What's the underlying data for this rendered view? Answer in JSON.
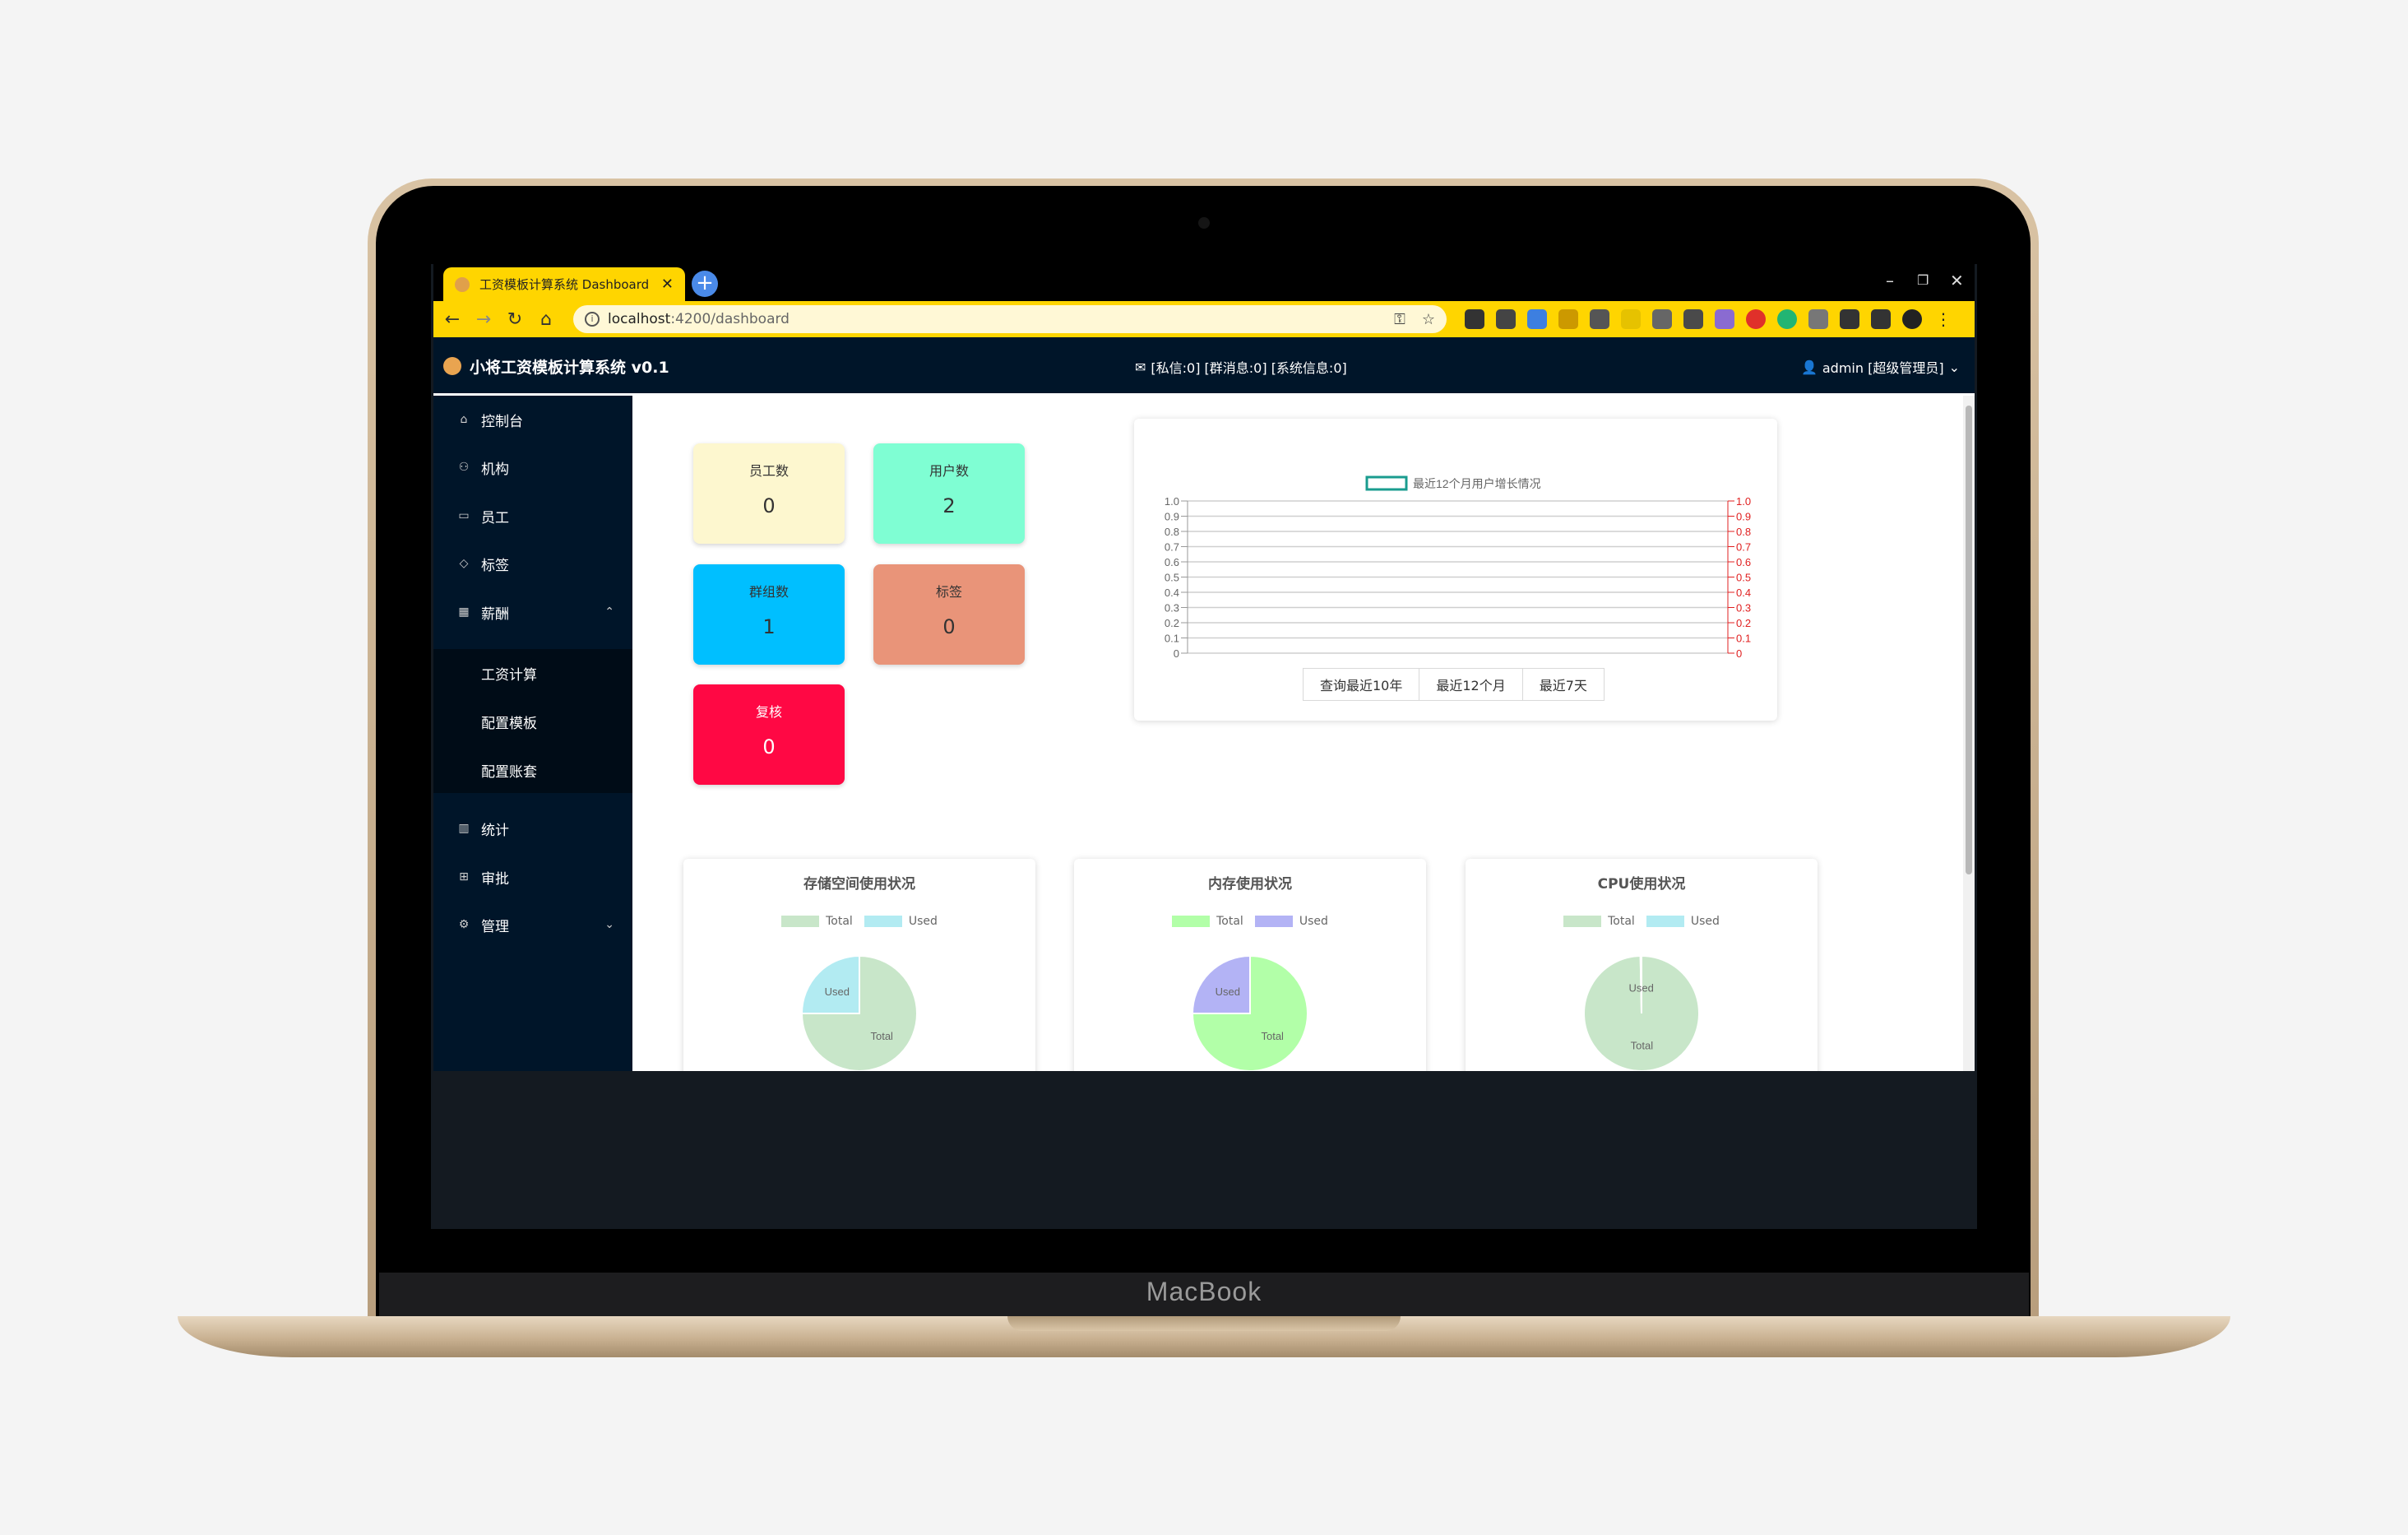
{
  "device": {
    "brand": "MacBook"
  },
  "browser": {
    "tab_title": "工资模板计算系统 Dashboard",
    "url_host": "localhost",
    "url_path": ":4200/dashboard"
  },
  "app": {
    "title": "小将工资模板计算系统 v0.1",
    "messages": "[私信:0] [群消息:0] [系统信息:0]",
    "user": "admin [超级管理员]"
  },
  "sidebar": {
    "items": [
      {
        "label": "控制台",
        "icon": "home-icon"
      },
      {
        "label": "机构",
        "icon": "team-icon"
      },
      {
        "label": "员工",
        "icon": "idcard-icon"
      },
      {
        "label": "标签",
        "icon": "tag-icon"
      },
      {
        "label": "薪酬",
        "icon": "salary-icon",
        "expanded": true
      },
      {
        "label": "统计",
        "icon": "bar-chart-icon"
      },
      {
        "label": "审批",
        "icon": "appstore-icon"
      },
      {
        "label": "管理",
        "icon": "setting-icon",
        "expanded": false
      }
    ],
    "salary_submenu": [
      "工资计算",
      "配置模板",
      "配置账套"
    ]
  },
  "stats": [
    {
      "label": "员工数",
      "value": "0",
      "bg": "#fdf7cf",
      "fg": "#333333"
    },
    {
      "label": "用户数",
      "value": "2",
      "bg": "#7ffed3",
      "fg": "#333333"
    },
    {
      "label": "群组数",
      "value": "1",
      "bg": "#00bfff",
      "fg": "#333333"
    },
    {
      "label": "标签",
      "value": "0",
      "bg": "#e99479",
      "fg": "#333333"
    },
    {
      "label": "复核",
      "value": "0",
      "bg": "#ff0844",
      "fg": "#ffffff"
    }
  ],
  "growth_chart": {
    "legend": "最近12个月用户增长情况",
    "range_buttons": [
      "查询最近10年",
      "最近12个月",
      "最近7天"
    ]
  },
  "chart_data": [
    {
      "type": "line",
      "series": [
        {
          "name": "最近12个月用户增长情况",
          "values": []
        }
      ],
      "ylim": [
        0,
        1.0
      ],
      "y_ticks": [
        "0",
        "0.1",
        "0.2",
        "0.3",
        "0.4",
        "0.5",
        "0.6",
        "0.7",
        "0.8",
        "0.9",
        "1.0"
      ],
      "y2_ticks": [
        "0",
        "0.1",
        "0.2",
        "0.3",
        "0.4",
        "0.5",
        "0.6",
        "0.7",
        "0.8",
        "0.9",
        "1.0"
      ],
      "grid": true,
      "legend_position": "top-center",
      "colors": {
        "series": "#1a9c8f",
        "left_axis": "#666666",
        "right_axis": "#e02020"
      }
    },
    {
      "type": "pie",
      "title": "存储空间使用状况",
      "categories": [
        "Total",
        "Used"
      ],
      "values": [
        0.75,
        0.25
      ],
      "colors": [
        "#c8e6c9",
        "#b2ebf2"
      ]
    },
    {
      "type": "pie",
      "title": "内存使用状况",
      "categories": [
        "Total",
        "Used"
      ],
      "values": [
        0.75,
        0.25
      ],
      "colors": [
        "#b2ffa8",
        "#b3b3f5"
      ]
    },
    {
      "type": "pie",
      "title": "CPU使用状况",
      "categories": [
        "Total",
        "Used"
      ],
      "values": [
        0.997,
        0.003
      ],
      "colors": [
        "#c8e6c9",
        "#b2ebf2"
      ]
    }
  ]
}
